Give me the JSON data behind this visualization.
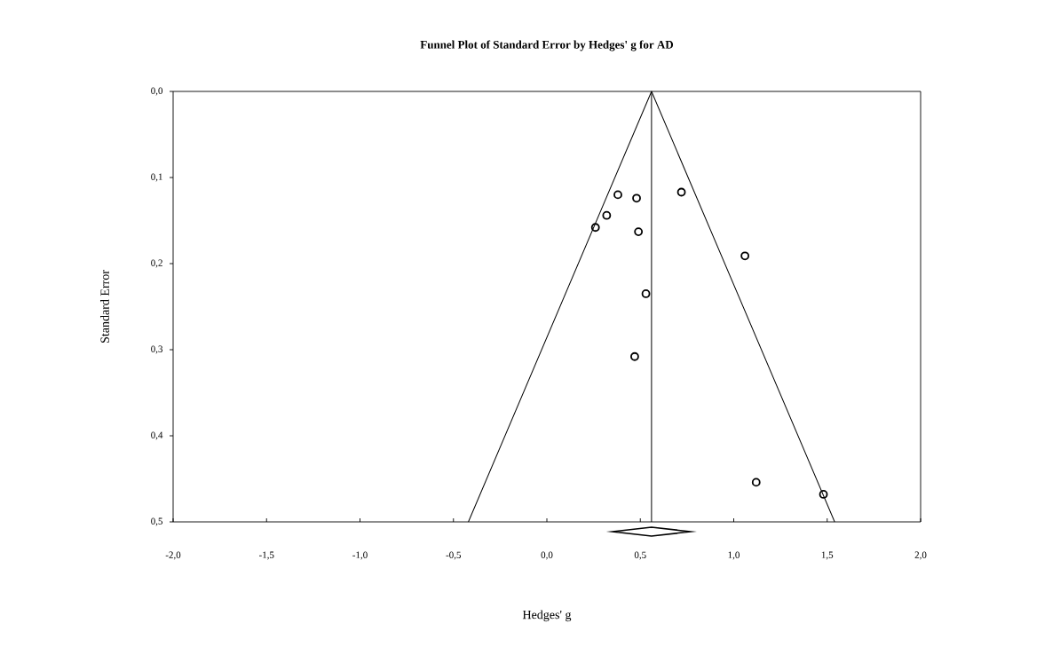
{
  "chart_data": {
    "type": "scatter",
    "title": "Funnel Plot of Standard Error by Hedges' g for AD",
    "xlabel": "Hedges' g",
    "ylabel": "Standard Error",
    "series": [
      {
        "color": "#000000",
        "marker": "circle",
        "x": [
          0.38,
          0.48,
          0.72,
          0.32,
          0.26,
          0.49,
          1.06,
          0.53,
          0.47,
          1.12,
          1.48
        ],
        "values": [
          0.12,
          0.124,
          0.117,
          0.144,
          0.158,
          0.163,
          0.191,
          0.235,
          0.308,
          0.454,
          0.468
        ]
      },
      {
        "type": "line",
        "color": "#000000",
        "marker": "none",
        "line_style": "solid",
        "x": [
          -0.42,
          0.56,
          1.54
        ],
        "values": [
          0.5,
          0,
          0.5
        ]
      }
    ],
    "ref_lines": [
      {
        "axis": "x",
        "value": 0.56,
        "color": "#000000"
      }
    ],
    "xlim": [
      -2,
      2
    ],
    "ylim": [
      0.5,
      0
    ],
    "xticks": [
      {
        "value": -2,
        "label": "-2,0"
      },
      {
        "value": -1.5,
        "label": "-1,5"
      },
      {
        "value": -1,
        "label": "-1,0"
      },
      {
        "value": -0.5,
        "label": "-0,5"
      },
      {
        "value": 0,
        "label": "0,0"
      },
      {
        "value": 0.5,
        "label": "0,5"
      },
      {
        "value": 1,
        "label": "1,0"
      },
      {
        "value": 1.5,
        "label": "1,5"
      },
      {
        "value": 2,
        "label": "2,0"
      }
    ],
    "yticks": [
      {
        "value": 0,
        "label": "0,0"
      },
      {
        "value": 0.1,
        "label": "0,1"
      },
      {
        "value": 0.2,
        "label": "0,2"
      },
      {
        "value": 0.3,
        "label": "0,3"
      },
      {
        "value": 0.4,
        "label": "0,4"
      },
      {
        "value": 0.5,
        "label": "0,5"
      }
    ],
    "grid": false
  }
}
